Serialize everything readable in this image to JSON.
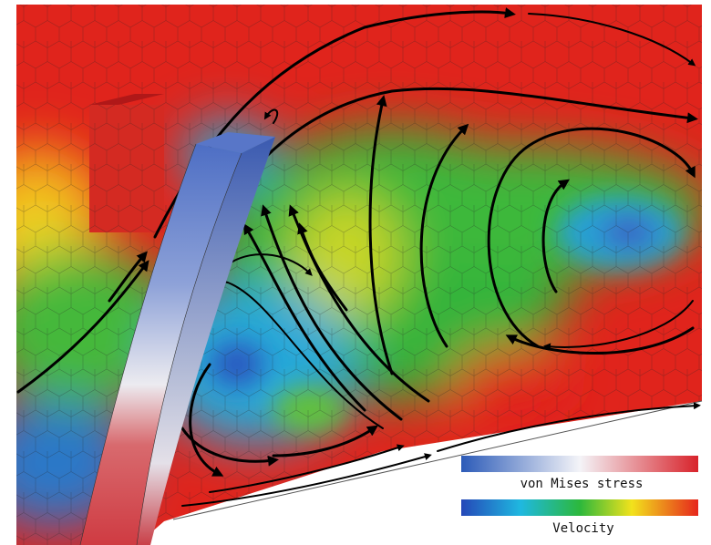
{
  "legend": {
    "stress_label": "von Mises stress",
    "velocity_label": "Velocity"
  }
}
